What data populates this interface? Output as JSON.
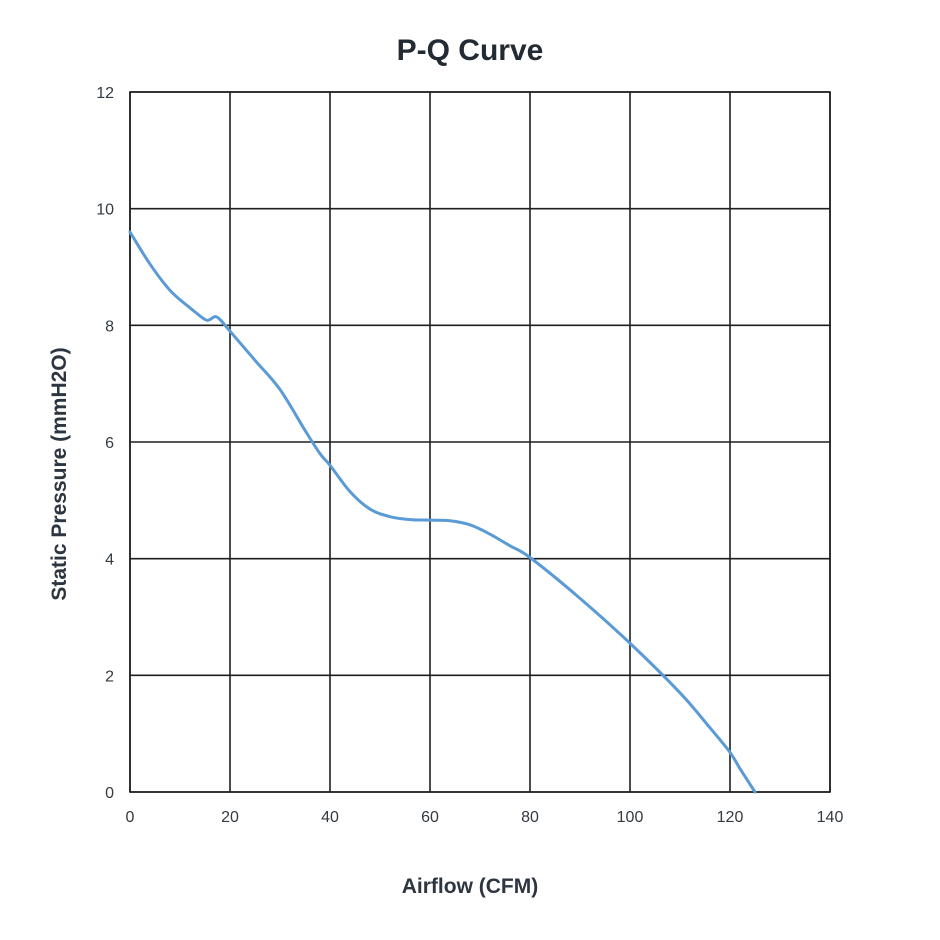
{
  "chart_data": {
    "type": "line",
    "title": "P-Q Curve",
    "xlabel": "Airflow (CFM)",
    "ylabel": "Static Pressure (mmH2O)",
    "xlim": [
      0,
      140
    ],
    "ylim": [
      0,
      12
    ],
    "xticks": [
      0,
      20,
      40,
      60,
      80,
      100,
      120,
      140
    ],
    "yticks": [
      0,
      2,
      4,
      6,
      8,
      10,
      12
    ],
    "grid": true,
    "series": [
      {
        "color": "#5b9bd5",
        "x": [
          0,
          4,
          8,
          12,
          15,
          16,
          17,
          18,
          20,
          25,
          30,
          35,
          38,
          40,
          44,
          48,
          52,
          56,
          60,
          64,
          68,
          72,
          76,
          80,
          90,
          100,
          110,
          116,
          120,
          122,
          125
        ],
        "y": [
          9.6,
          9.05,
          8.6,
          8.3,
          8.1,
          8.1,
          8.15,
          8.1,
          7.9,
          7.4,
          6.9,
          6.2,
          5.8,
          5.6,
          5.15,
          4.85,
          4.72,
          4.67,
          4.66,
          4.65,
          4.58,
          4.42,
          4.22,
          4.02,
          3.32,
          2.55,
          1.7,
          1.1,
          0.68,
          0.4,
          0.0
        ]
      }
    ]
  }
}
